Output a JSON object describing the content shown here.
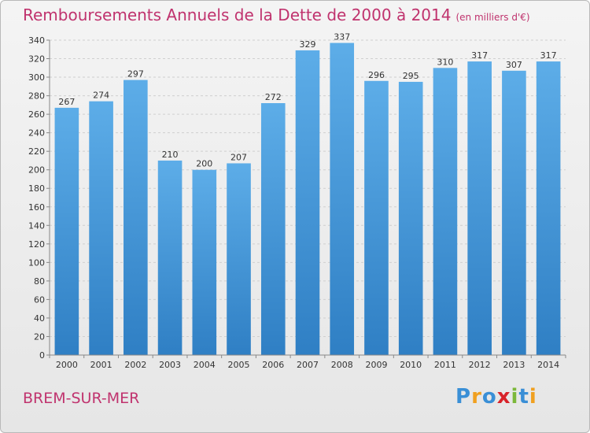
{
  "title": "Remboursements Annuels de la Dette de 2000 à 2014",
  "unit": "(en milliers d'€)",
  "place": "BREM-SUR-MER",
  "logo": {
    "letters": [
      {
        "char": "P",
        "color": "#3a8fd6"
      },
      {
        "char": "r",
        "color": "#f0a020"
      },
      {
        "char": "o",
        "color": "#3a8fd6"
      },
      {
        "char": "x",
        "color": "#d8232a"
      },
      {
        "char": "i",
        "color": "#7cb83a"
      },
      {
        "char": "t",
        "color": "#3a8fd6"
      },
      {
        "char": "i",
        "color": "#f0a020"
      }
    ]
  },
  "chart_data": {
    "type": "bar",
    "categories": [
      "2000",
      "2001",
      "2002",
      "2003",
      "2004",
      "2005",
      "2006",
      "2007",
      "2008",
      "2009",
      "2010",
      "2011",
      "2012",
      "2013",
      "2014"
    ],
    "values": [
      267,
      274,
      297,
      210,
      200,
      207,
      272,
      329,
      337,
      296,
      295,
      310,
      317,
      307,
      317
    ],
    "ylim": [
      0,
      340
    ],
    "yticks": [
      0,
      20,
      40,
      60,
      80,
      100,
      120,
      140,
      160,
      180,
      200,
      220,
      240,
      260,
      280,
      300,
      320,
      340
    ],
    "grid": true,
    "bar_color": "#4a9ee0"
  }
}
